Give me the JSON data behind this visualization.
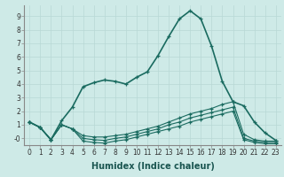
{
  "xlabel": "Humidex (Indice chaleur)",
  "ylabel": "",
  "background_color": "#ceeae7",
  "grid_color": "#b8d8d5",
  "line_color": "#1a6b60",
  "x_values": [
    0,
    1,
    2,
    3,
    4,
    5,
    6,
    7,
    8,
    9,
    10,
    11,
    12,
    13,
    14,
    15,
    16,
    17,
    18,
    19,
    20,
    21,
    22,
    23
  ],
  "series": [
    [
      1.2,
      0.8,
      -0.1,
      1.3,
      2.3,
      3.8,
      4.1,
      4.3,
      4.2,
      4.0,
      4.5,
      4.9,
      6.1,
      7.5,
      8.8,
      9.4,
      8.8,
      6.8,
      4.2,
      2.7,
      2.4,
      1.2,
      0.4,
      -0.15
    ],
    [
      1.2,
      0.8,
      -0.1,
      1.0,
      0.7,
      0.2,
      0.1,
      0.1,
      0.2,
      0.3,
      0.5,
      0.7,
      0.9,
      1.2,
      1.5,
      1.8,
      2.0,
      2.2,
      2.5,
      2.7,
      0.3,
      -0.1,
      -0.2,
      -0.2
    ],
    [
      1.2,
      0.8,
      -0.1,
      1.0,
      0.7,
      0.0,
      -0.1,
      -0.15,
      0.0,
      0.1,
      0.3,
      0.5,
      0.7,
      1.0,
      1.2,
      1.5,
      1.7,
      1.9,
      2.1,
      2.3,
      0.0,
      -0.2,
      -0.3,
      -0.3
    ],
    [
      1.2,
      0.8,
      -0.1,
      1.0,
      0.7,
      -0.2,
      -0.3,
      -0.35,
      -0.2,
      -0.1,
      0.1,
      0.3,
      0.5,
      0.7,
      0.9,
      1.2,
      1.4,
      1.6,
      1.8,
      2.0,
      -0.1,
      -0.3,
      -0.4,
      -0.4
    ]
  ],
  "ylim": [
    -0.5,
    9.8
  ],
  "xlim": [
    -0.5,
    23.5
  ],
  "yticks": [
    0,
    1,
    2,
    3,
    4,
    5,
    6,
    7,
    8,
    9
  ],
  "ytick_labels": [
    "-0",
    "1",
    "2",
    "3",
    "4",
    "5",
    "6",
    "7",
    "8",
    "9"
  ],
  "xticks": [
    0,
    1,
    2,
    3,
    4,
    5,
    6,
    7,
    8,
    9,
    10,
    11,
    12,
    13,
    14,
    15,
    16,
    17,
    18,
    19,
    20,
    21,
    22,
    23
  ],
  "xlabel_fontsize": 7,
  "tick_fontsize": 5.5,
  "figsize": [
    3.2,
    2.0
  ],
  "dpi": 100
}
